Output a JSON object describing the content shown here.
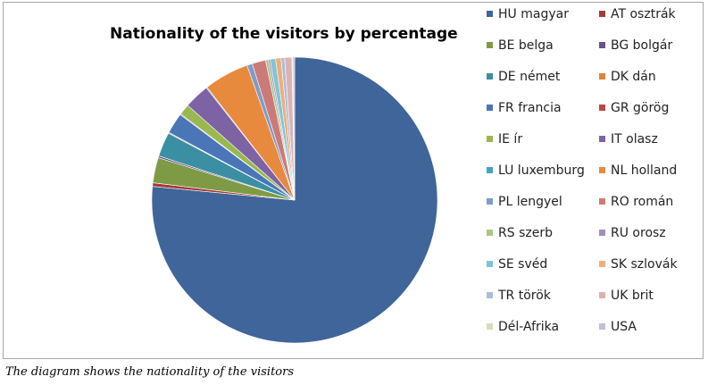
{
  "chart_data": {
    "type": "pie",
    "title": "Nationality of the visitors by percentage",
    "legend_position": "right",
    "slices": [
      {
        "label": "HU magyar",
        "value": 75.0,
        "color": "#3f659a"
      },
      {
        "label": "AT osztrák",
        "value": 0.4,
        "color": "#a33b38"
      },
      {
        "label": "BE belga",
        "value": 2.8,
        "color": "#7f9a45"
      },
      {
        "label": "BG bolgár",
        "value": 0.2,
        "color": "#6a528a"
      },
      {
        "label": "DE német",
        "value": 2.7,
        "color": "#3a8fa3"
      },
      {
        "label": "DK dán",
        "value": 0.1,
        "color": "#de8534"
      },
      {
        "label": "FR francia",
        "value": 2.3,
        "color": "#4a76b8"
      },
      {
        "label": "GR görög",
        "value": 0.1,
        "color": "#b94944"
      },
      {
        "label": "IE ír",
        "value": 1.2,
        "color": "#99b84f"
      },
      {
        "label": "IT olasz",
        "value": 2.8,
        "color": "#7d62a4"
      },
      {
        "label": "LU luxemburg",
        "value": 0.1,
        "color": "#43a5c0"
      },
      {
        "label": "NL holland",
        "value": 5.0,
        "color": "#e88a3e"
      },
      {
        "label": "PL lengyel",
        "value": 0.6,
        "color": "#7f9cc7"
      },
      {
        "label": "RO román",
        "value": 1.5,
        "color": "#cc7a78"
      },
      {
        "label": "RS szerb",
        "value": 0.3,
        "color": "#aec77f"
      },
      {
        "label": "RU orosz",
        "value": 0.2,
        "color": "#a08fbd"
      },
      {
        "label": "SE svéd",
        "value": 0.6,
        "color": "#7ec5d8"
      },
      {
        "label": "SK szlovák",
        "value": 0.6,
        "color": "#f0ad7b"
      },
      {
        "label": "TR török",
        "value": 0.4,
        "color": "#a9bedb"
      },
      {
        "label": "UK brit",
        "value": 0.8,
        "color": "#ddb3b2"
      },
      {
        "label": "Dél-Afrika",
        "value": 0.1,
        "color": "#d2e0b7"
      },
      {
        "label": "USA",
        "value": 0.2,
        "color": "#c8bcd8"
      }
    ]
  },
  "caption": "The diagram shows the nationality of the visitors"
}
